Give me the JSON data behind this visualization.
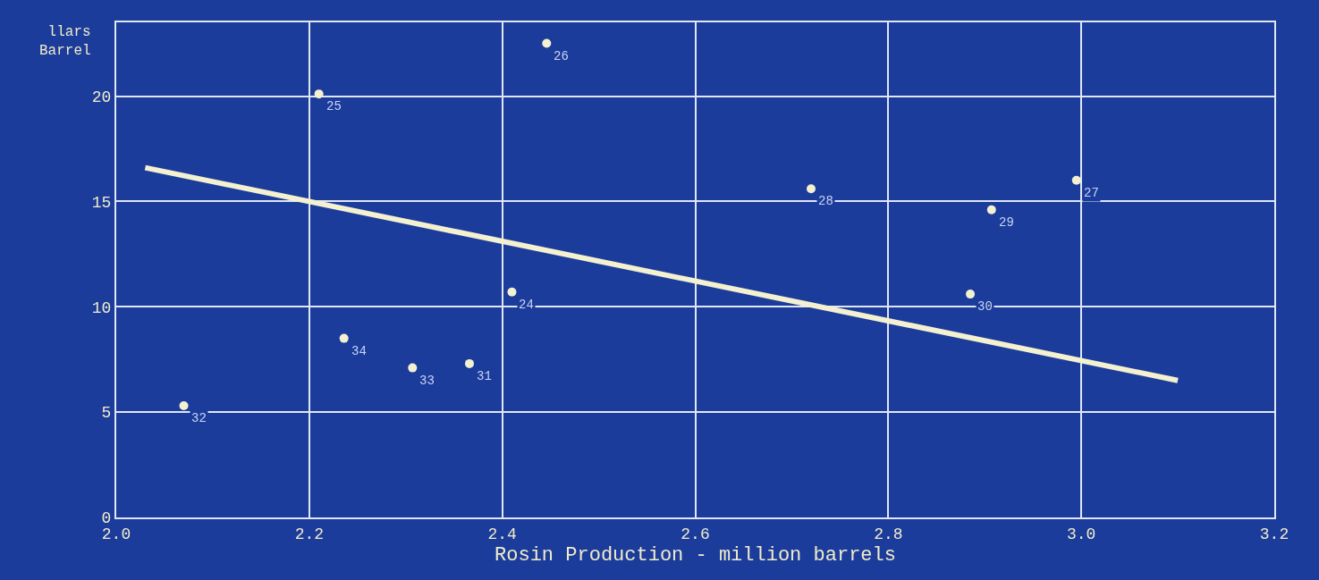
{
  "chart_data": {
    "type": "scatter",
    "xlabel": "Rosin Production - million barrels",
    "ylabel": "llars\nBarrel",
    "xlim": [
      2.0,
      3.2
    ],
    "xticks": [
      {
        "value": 2.0,
        "label": "2.0"
      },
      2.2,
      2.4,
      2.6,
      2.8,
      {
        "value": 3.0,
        "label": "3.0"
      },
      3.2
    ],
    "ylim": [
      0,
      23.5
    ],
    "yticks": [
      0,
      5,
      10,
      15,
      20
    ],
    "grid": true,
    "legend": false,
    "series": [
      {
        "color": "#f4f1d0",
        "marker": "circle",
        "x": [
          2.07,
          2.236,
          2.307,
          2.366,
          2.41,
          2.446,
          2.21,
          2.72,
          2.907,
          2.995,
          2.885
        ],
        "values": [
          5.3,
          8.5,
          7.1,
          7.3,
          10.7,
          22.5,
          20.1,
          15.6,
          14.6,
          16.0,
          10.6
        ]
      },
      {
        "type": "line",
        "marker": "none",
        "color": "#f4f1d0",
        "x": [
          2.03,
          3.1
        ],
        "values": [
          16.6,
          6.5
        ]
      }
    ],
    "annotations": [
      {
        "text": "32",
        "x": 2.07,
        "y": 5.3
      },
      {
        "text": "34",
        "x": 2.236,
        "y": 8.5
      },
      {
        "text": "33",
        "x": 2.307,
        "y": 7.1
      },
      {
        "text": "31",
        "x": 2.366,
        "y": 7.3
      },
      {
        "text": "24",
        "x": 2.41,
        "y": 10.7
      },
      {
        "text": "26",
        "x": 2.446,
        "y": 22.5
      },
      {
        "text": "25",
        "x": 2.21,
        "y": 20.1
      },
      {
        "text": "28",
        "x": 2.72,
        "y": 15.6
      },
      {
        "text": "29",
        "x": 2.907,
        "y": 14.6
      },
      {
        "text": "27",
        "x": 2.995,
        "y": 16.0
      },
      {
        "text": "30",
        "x": 2.885,
        "y": 10.6
      }
    ]
  }
}
